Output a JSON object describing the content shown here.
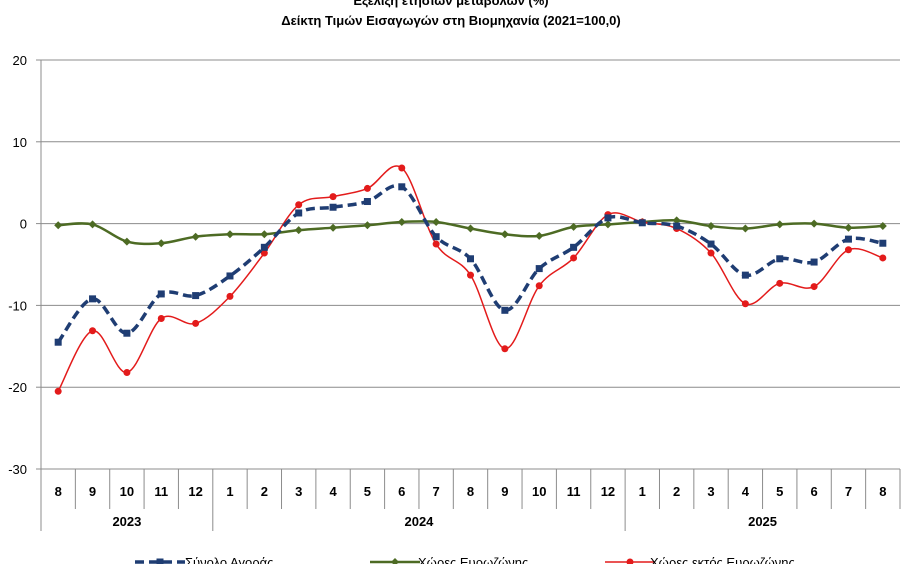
{
  "title": "Εξέλιξη ετήσιων μεταβολών (%)",
  "subtitle": "Δείκτη Τιμών Εισαγωγών στη Βιομηχανία (2021=100,0)",
  "chart_data": {
    "type": "line",
    "categories": [
      "8",
      "9",
      "10",
      "11",
      "12",
      "1",
      "2",
      "3",
      "4",
      "5",
      "6",
      "7",
      "8",
      "9",
      "10",
      "11",
      "12",
      "1",
      "2",
      "3",
      "4",
      "5",
      "6",
      "7",
      "8"
    ],
    "year_groups": [
      {
        "label": "2023",
        "span": 5
      },
      {
        "label": "2024",
        "span": 12
      },
      {
        "label": "2025",
        "span": 8
      }
    ],
    "ylim": [
      -30,
      20
    ],
    "yticks": [
      20,
      10,
      0,
      -10,
      -20,
      -30
    ],
    "grid": true,
    "legend_position": "bottom",
    "colors": {
      "total": "#1f3d73",
      "eurozone": "#4d6b24",
      "non_eurozone": "#e31b1b"
    },
    "series": [
      {
        "name": "Σύνολο Αγοράς",
        "style": "dashed-square",
        "values": [
          -14.5,
          -9.2,
          -13.4,
          -8.6,
          -8.8,
          -6.4,
          -2.9,
          1.3,
          2.0,
          2.7,
          4.5,
          -1.6,
          -4.3,
          -10.6,
          -5.5,
          -2.9,
          0.7,
          0.1,
          -0.3,
          -2.5,
          -6.3,
          -4.3,
          -4.7,
          -1.9,
          -2.4
        ]
      },
      {
        "name": "Χώρες Ευρωζώνης",
        "style": "solid-diamond",
        "values": [
          -0.2,
          -0.1,
          -2.2,
          -2.4,
          -1.6,
          -1.3,
          -1.3,
          -0.8,
          -0.5,
          -0.2,
          0.2,
          0.2,
          -0.6,
          -1.3,
          -1.5,
          -0.4,
          -0.1,
          0.2,
          0.4,
          -0.3,
          -0.6,
          -0.1,
          0.0,
          -0.5,
          -0.3
        ]
      },
      {
        "name": "Χώρες εκτός Ευρωζώνης",
        "style": "solid-circle",
        "values": [
          -20.5,
          -13.1,
          -18.2,
          -11.6,
          -12.2,
          -8.9,
          -3.6,
          2.3,
          3.3,
          4.3,
          6.8,
          -2.5,
          -6.3,
          -15.3,
          -7.6,
          -4.2,
          1.1,
          0.2,
          -0.6,
          -3.6,
          -9.8,
          -7.3,
          -7.7,
          -3.2,
          -4.2
        ]
      }
    ]
  }
}
